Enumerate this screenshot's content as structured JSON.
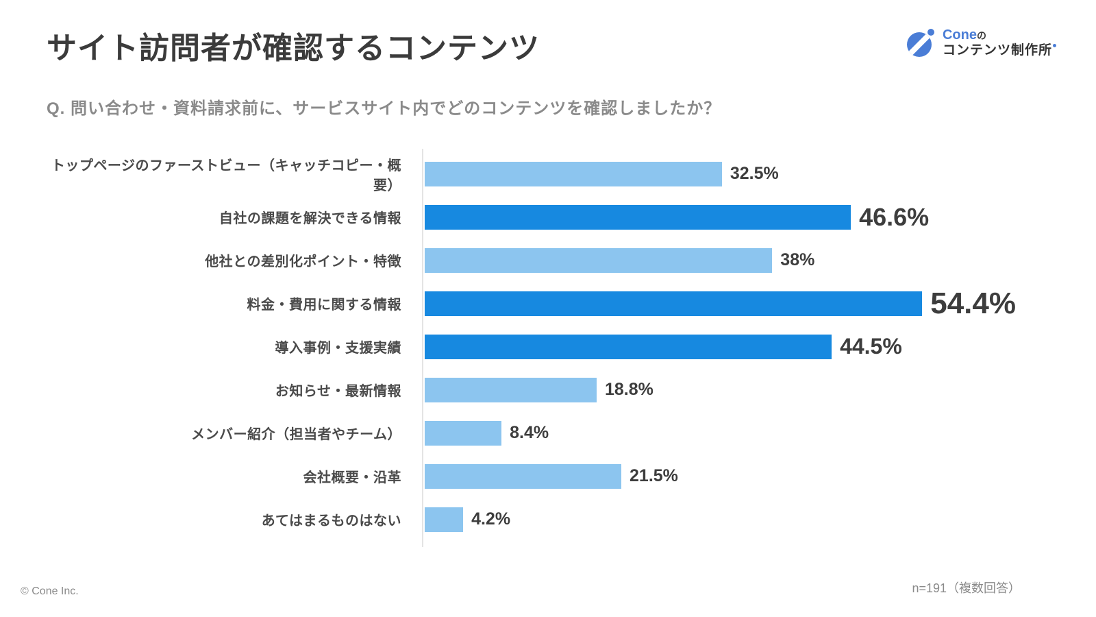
{
  "header": {
    "title": "サイト訪問者が確認するコンテンツ",
    "question": "Q. 問い合わせ・資料請求前に、サービスサイト内でどのコンテンツを確認しましたか？"
  },
  "logo": {
    "brand": "Cone",
    "brand_suffix": "の",
    "subtitle": "コンテンツ制作所",
    "icon": "cone-logo-icon",
    "brand_color": "#4a7dd6"
  },
  "chart_data": {
    "type": "bar",
    "orientation": "horizontal",
    "title": "サイト訪問者が確認するコンテンツ",
    "xlabel": "",
    "ylabel": "",
    "xlim": [
      0,
      55
    ],
    "grid": false,
    "legend": "none",
    "categories": [
      "トップページのファーストビュー（キャッチコピー・概要）",
      "自社の課題を解決できる情報",
      "他社との差別化ポイント・特徴",
      "料金・費用に関する情報",
      "導入事例・支援実績",
      "お知らせ・最新情報",
      "メンバー紹介（担当者やチーム）",
      "会社概要・沿革",
      "あてはまるものはない"
    ],
    "values": [
      32.5,
      46.6,
      38,
      54.4,
      44.5,
      18.8,
      8.4,
      21.5,
      4.2
    ],
    "value_labels": [
      "32.5%",
      "46.6%",
      "38%",
      "54.4%",
      "44.5%",
      "18.8%",
      "8.4%",
      "21.5%",
      "4.2%"
    ],
    "highlighted": [
      false,
      true,
      false,
      true,
      true,
      false,
      false,
      false,
      false
    ],
    "emphasis": [
      "normal",
      "large",
      "normal",
      "xlarge",
      "medium",
      "normal",
      "normal",
      "normal",
      "normal"
    ],
    "colors": {
      "light": "#8cc5ef",
      "dark": "#1789e0"
    }
  },
  "footer": {
    "copyright": "© Cone Inc.",
    "sample_note": "n=191（複数回答）"
  }
}
